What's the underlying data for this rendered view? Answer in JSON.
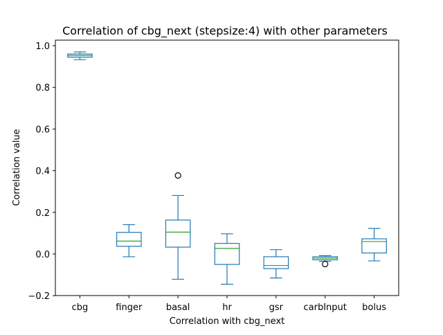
{
  "chart_data": {
    "type": "box",
    "title": "Correlation of cbg_next (stepsize:4) with other parameters",
    "xlabel": "Correlation with cbg_next",
    "ylabel": "Correlation value",
    "ylim": [
      -0.2,
      1.02
    ],
    "yticks": [
      -0.2,
      0.0,
      0.2,
      0.4,
      0.6,
      0.8,
      1.0
    ],
    "ytick_labels": [
      "−0.2",
      "0.0",
      "0.2",
      "0.4",
      "0.6",
      "0.8",
      "1.0"
    ],
    "grid": false,
    "categories": [
      "cbg",
      "finger",
      "basal",
      "hr",
      "gsr",
      "carbInput",
      "bolus"
    ],
    "boxes": [
      {
        "whisker_low": 0.933,
        "q1": 0.945,
        "median": 0.953,
        "q3": 0.96,
        "whisker_high": 0.97,
        "outliers": []
      },
      {
        "whisker_low": -0.013,
        "q1": 0.037,
        "median": 0.062,
        "q3": 0.104,
        "whisker_high": 0.141,
        "outliers": []
      },
      {
        "whisker_low": -0.121,
        "q1": 0.033,
        "median": 0.105,
        "q3": 0.163,
        "whisker_high": 0.281,
        "outliers": [
          0.377
        ]
      },
      {
        "whisker_low": -0.145,
        "q1": -0.05,
        "median": 0.027,
        "q3": 0.051,
        "whisker_high": 0.097,
        "outliers": []
      },
      {
        "whisker_low": -0.115,
        "q1": -0.07,
        "median": -0.055,
        "q3": -0.013,
        "whisker_high": 0.021,
        "outliers": []
      },
      {
        "whisker_low": -0.035,
        "q1": -0.028,
        "median": -0.02,
        "q3": -0.013,
        "whisker_high": -0.008,
        "outliers": [
          -0.048
        ]
      },
      {
        "whisker_low": -0.033,
        "q1": 0.005,
        "median": 0.06,
        "q3": 0.073,
        "whisker_high": 0.123,
        "outliers": []
      }
    ],
    "colors": {
      "box": "#1f77b4",
      "median": "#2ca02c",
      "outlier": "#000000",
      "axes": "#000000"
    }
  }
}
